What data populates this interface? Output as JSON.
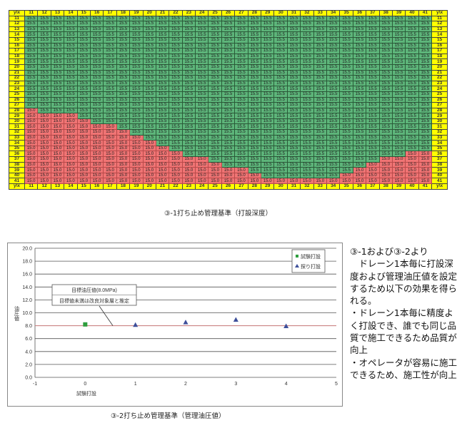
{
  "table": {
    "corner_label": "y\\x",
    "columns": [
      11,
      12,
      13,
      14,
      15,
      16,
      17,
      18,
      19,
      20,
      21,
      22,
      23,
      24,
      25,
      26,
      27,
      28,
      29,
      30,
      31,
      32,
      33,
      34,
      35,
      36,
      37,
      38,
      39,
      40,
      41
    ],
    "rows": [
      {
        "y": 11,
        "values": [
          15.5,
          15.5,
          15.5,
          15.5,
          15.5,
          15.5,
          15.5,
          15.5,
          15.5,
          15.5,
          15.5,
          15.5,
          15.5,
          15.5,
          15.5,
          15.5,
          15.5,
          15.5,
          15.5,
          15.5,
          15.5,
          15.5,
          15.5,
          15.5,
          15.5,
          15.5,
          15.5,
          15.5,
          15.5,
          15.5,
          15.5
        ]
      },
      {
        "y": 12,
        "values": [
          15.5,
          15.5,
          15.5,
          15.5,
          15.5,
          15.5,
          15.5,
          15.5,
          15.5,
          15.5,
          15.5,
          15.5,
          15.5,
          15.5,
          15.5,
          15.5,
          15.5,
          15.5,
          15.5,
          15.5,
          15.5,
          15.5,
          15.5,
          15.5,
          15.5,
          15.5,
          15.5,
          15.5,
          15.5,
          15.5,
          15.5
        ]
      },
      {
        "y": 13,
        "values": [
          15.5,
          15.5,
          15.5,
          15.5,
          15.5,
          15.5,
          15.5,
          15.5,
          15.5,
          15.5,
          15.5,
          15.5,
          15.5,
          15.5,
          15.5,
          15.5,
          15.5,
          15.5,
          15.5,
          15.5,
          15.5,
          15.5,
          15.5,
          15.5,
          15.5,
          15.5,
          15.5,
          15.5,
          15.5,
          15.5,
          15.5
        ]
      },
      {
        "y": 14,
        "values": [
          15.5,
          15.5,
          15.5,
          15.5,
          15.5,
          15.5,
          15.5,
          15.5,
          15.5,
          15.5,
          15.5,
          15.5,
          15.5,
          15.5,
          15.5,
          15.5,
          15.5,
          15.5,
          15.5,
          15.5,
          15.5,
          15.5,
          15.5,
          15.5,
          15.5,
          15.5,
          15.5,
          15.5,
          15.5,
          15.5,
          15.5
        ]
      },
      {
        "y": 15,
        "values": [
          15.5,
          15.5,
          15.5,
          15.5,
          15.5,
          15.5,
          15.5,
          15.5,
          15.5,
          15.5,
          15.5,
          15.5,
          15.5,
          15.5,
          15.5,
          15.5,
          15.5,
          15.5,
          15.5,
          15.5,
          15.5,
          15.5,
          15.5,
          15.5,
          15.5,
          15.5,
          15.5,
          15.5,
          15.5,
          15.5,
          15.5
        ]
      },
      {
        "y": 16,
        "values": [
          15.5,
          15.5,
          15.5,
          15.5,
          15.5,
          15.5,
          15.5,
          15.5,
          15.5,
          15.5,
          15.5,
          15.5,
          15.5,
          15.5,
          15.5,
          15.5,
          15.5,
          15.5,
          15.5,
          15.5,
          15.5,
          15.5,
          15.5,
          15.5,
          15.5,
          15.5,
          15.5,
          15.5,
          15.5,
          15.5,
          15.5
        ]
      },
      {
        "y": 17,
        "values": [
          15.5,
          15.5,
          15.5,
          15.5,
          15.5,
          15.5,
          15.5,
          15.5,
          15.5,
          15.5,
          15.5,
          15.5,
          15.5,
          15.5,
          15.5,
          15.5,
          15.5,
          15.5,
          15.5,
          15.5,
          15.5,
          15.5,
          15.5,
          15.5,
          15.5,
          15.5,
          15.5,
          15.5,
          15.5,
          15.5,
          15.5
        ]
      },
      {
        "y": 18,
        "values": [
          15.5,
          15.5,
          15.5,
          15.5,
          15.5,
          15.5,
          15.5,
          15.5,
          15.5,
          15.5,
          15.5,
          15.5,
          15.5,
          15.5,
          15.5,
          15.5,
          15.5,
          15.5,
          15.5,
          15.5,
          15.5,
          15.5,
          15.5,
          15.5,
          15.5,
          15.5,
          15.5,
          15.5,
          15.5,
          15.5,
          15.5
        ]
      },
      {
        "y": 19,
        "values": [
          15.5,
          15.5,
          15.5,
          15.5,
          15.5,
          15.5,
          15.5,
          15.5,
          15.5,
          15.5,
          15.5,
          15.5,
          15.5,
          15.5,
          15.5,
          15.5,
          15.5,
          15.5,
          15.5,
          15.5,
          15.5,
          15.5,
          15.5,
          15.5,
          15.5,
          15.5,
          15.5,
          15.5,
          15.5,
          15.5,
          15.5
        ]
      },
      {
        "y": 20,
        "values": [
          15.5,
          15.5,
          15.5,
          15.5,
          15.5,
          15.5,
          15.5,
          15.5,
          15.5,
          15.5,
          15.5,
          15.5,
          15.5,
          15.5,
          15.5,
          15.5,
          15.5,
          15.5,
          15.5,
          15.5,
          15.5,
          15.5,
          15.5,
          15.5,
          15.5,
          15.5,
          15.5,
          15.5,
          15.5,
          15.5,
          15.5
        ]
      },
      {
        "y": 21,
        "values": [
          15.5,
          15.5,
          15.5,
          15.5,
          15.5,
          15.5,
          15.5,
          15.5,
          15.5,
          15.5,
          15.5,
          15.5,
          15.5,
          15.5,
          15.5,
          15.5,
          15.5,
          15.5,
          15.5,
          15.5,
          15.5,
          15.5,
          15.5,
          15.5,
          15.5,
          15.5,
          15.5,
          15.5,
          15.5,
          15.5,
          15.5
        ]
      },
      {
        "y": 22,
        "values": [
          15.5,
          15.5,
          15.5,
          15.5,
          15.5,
          15.5,
          15.5,
          15.5,
          15.5,
          15.5,
          15.5,
          15.5,
          15.5,
          15.5,
          15.5,
          15.5,
          15.5,
          15.5,
          15.5,
          15.5,
          15.5,
          15.5,
          15.5,
          15.5,
          15.5,
          15.5,
          15.5,
          15.5,
          15.5,
          15.5,
          15.5
        ]
      },
      {
        "y": 23,
        "values": [
          15.5,
          15.5,
          15.5,
          15.5,
          15.5,
          15.5,
          15.5,
          15.5,
          15.5,
          15.5,
          15.5,
          15.5,
          15.5,
          15.5,
          15.5,
          15.5,
          15.5,
          15.5,
          15.5,
          15.5,
          15.5,
          15.5,
          15.5,
          15.5,
          15.5,
          15.5,
          15.5,
          15.5,
          15.5,
          15.5,
          15.5
        ]
      },
      {
        "y": 24,
        "values": [
          15.5,
          15.5,
          15.5,
          15.5,
          15.5,
          15.5,
          15.5,
          15.5,
          15.5,
          15.5,
          15.5,
          15.5,
          15.5,
          15.5,
          15.5,
          15.5,
          15.5,
          15.5,
          15.5,
          15.5,
          15.5,
          15.5,
          15.5,
          15.5,
          15.5,
          15.5,
          15.5,
          15.5,
          15.5,
          15.5,
          15.5
        ]
      },
      {
        "y": 25,
        "values": [
          15.5,
          15.5,
          15.5,
          15.5,
          15.5,
          15.5,
          15.5,
          15.5,
          15.5,
          15.5,
          15.5,
          15.5,
          15.5,
          15.5,
          15.5,
          15.5,
          15.5,
          15.5,
          15.5,
          15.5,
          15.5,
          15.5,
          15.5,
          15.5,
          15.5,
          15.5,
          15.5,
          15.5,
          15.5,
          15.5,
          15.5
        ]
      },
      {
        "y": 26,
        "values": [
          15.5,
          15.5,
          15.5,
          15.5,
          15.5,
          15.5,
          15.5,
          15.5,
          15.5,
          15.5,
          15.5,
          15.5,
          15.5,
          15.5,
          15.5,
          15.5,
          15.5,
          15.5,
          15.5,
          15.5,
          15.5,
          15.5,
          15.5,
          15.5,
          15.5,
          15.5,
          15.5,
          15.5,
          15.5,
          15.5,
          15.5
        ]
      },
      {
        "y": 27,
        "values": [
          15.5,
          15.5,
          15.5,
          15.5,
          15.5,
          15.5,
          15.5,
          15.5,
          15.5,
          15.5,
          15.5,
          15.5,
          15.5,
          15.5,
          15.5,
          15.5,
          15.5,
          15.5,
          15.5,
          15.5,
          15.5,
          15.5,
          15.5,
          15.5,
          15.5,
          15.5,
          15.5,
          15.5,
          15.5,
          15.5,
          15.5
        ]
      },
      {
        "y": 28,
        "values": [
          15.0,
          15.5,
          15.5,
          15.5,
          15.5,
          15.5,
          15.5,
          15.5,
          15.5,
          15.5,
          15.5,
          15.5,
          15.5,
          15.5,
          15.5,
          15.5,
          15.5,
          15.5,
          15.5,
          15.5,
          15.5,
          15.5,
          15.5,
          15.5,
          15.5,
          15.5,
          15.5,
          15.5,
          15.5,
          15.5,
          15.5
        ]
      },
      {
        "y": 29,
        "values": [
          15.0,
          15.0,
          15.0,
          15.0,
          15.5,
          15.5,
          15.5,
          15.5,
          15.5,
          15.5,
          15.5,
          15.5,
          15.5,
          15.5,
          15.5,
          15.5,
          15.5,
          15.5,
          15.5,
          15.5,
          15.5,
          15.5,
          15.5,
          15.5,
          15.5,
          15.5,
          15.5,
          15.5,
          15.5,
          15.5,
          15.5
        ]
      },
      {
        "y": 30,
        "values": [
          15.0,
          15.0,
          15.0,
          15.0,
          15.0,
          15.5,
          15.5,
          15.5,
          15.5,
          15.5,
          15.5,
          15.5,
          15.5,
          15.5,
          15.5,
          15.5,
          15.5,
          15.5,
          15.5,
          15.5,
          15.5,
          15.5,
          15.5,
          15.5,
          15.5,
          15.5,
          15.5,
          15.5,
          15.5,
          15.5,
          15.5
        ]
      },
      {
        "y": 31,
        "values": [
          15.0,
          15.0,
          15.0,
          15.0,
          15.0,
          15.0,
          15.0,
          15.5,
          15.5,
          15.5,
          15.5,
          15.5,
          15.5,
          15.5,
          15.5,
          15.5,
          15.5,
          15.5,
          15.5,
          15.5,
          15.5,
          15.5,
          15.5,
          15.5,
          15.5,
          15.5,
          15.5,
          15.5,
          15.5,
          15.5,
          15.5
        ]
      },
      {
        "y": 32,
        "values": [
          15.0,
          15.0,
          15.0,
          15.0,
          15.0,
          15.0,
          15.0,
          15.0,
          15.5,
          15.5,
          15.5,
          15.5,
          15.5,
          15.5,
          15.5,
          15.5,
          15.5,
          15.5,
          15.5,
          15.5,
          15.5,
          15.5,
          15.5,
          15.5,
          15.5,
          15.5,
          15.5,
          15.5,
          15.5,
          15.5,
          15.5
        ]
      },
      {
        "y": 33,
        "values": [
          15.0,
          15.0,
          15.0,
          15.0,
          15.0,
          15.0,
          15.0,
          15.0,
          15.0,
          15.5,
          15.5,
          15.5,
          15.5,
          15.5,
          15.5,
          15.5,
          15.5,
          15.5,
          15.5,
          15.5,
          15.5,
          15.5,
          15.5,
          15.5,
          15.5,
          15.5,
          15.5,
          15.5,
          15.5,
          15.5,
          15.5
        ]
      },
      {
        "y": 34,
        "values": [
          15.0,
          15.0,
          15.0,
          15.0,
          15.0,
          15.0,
          15.0,
          15.0,
          15.0,
          15.0,
          15.5,
          15.5,
          15.5,
          15.5,
          15.5,
          15.5,
          15.5,
          15.5,
          15.5,
          15.5,
          15.5,
          15.5,
          15.5,
          15.5,
          15.5,
          15.5,
          15.5,
          15.5,
          15.5,
          15.5,
          15.5
        ]
      },
      {
        "y": 35,
        "values": [
          15.0,
          15.0,
          15.0,
          15.0,
          15.0,
          15.0,
          15.0,
          15.0,
          15.0,
          15.0,
          15.0,
          15.5,
          15.5,
          15.5,
          15.5,
          15.5,
          15.5,
          15.5,
          15.5,
          15.5,
          15.5,
          15.5,
          15.5,
          15.5,
          15.5,
          15.5,
          15.5,
          15.5,
          15.5,
          15.5,
          15.5
        ]
      },
      {
        "y": 36,
        "values": [
          15.0,
          15.0,
          15.0,
          15.0,
          15.0,
          15.0,
          15.0,
          15.0,
          15.0,
          15.0,
          15.0,
          15.0,
          15.5,
          15.5,
          15.5,
          15.5,
          15.5,
          15.5,
          15.5,
          15.5,
          15.5,
          15.5,
          15.5,
          15.5,
          15.5,
          15.5,
          15.5,
          15.5,
          15.5,
          15.0,
          15.0
        ]
      },
      {
        "y": 37,
        "values": [
          15.0,
          15.0,
          15.0,
          15.0,
          15.0,
          15.0,
          15.0,
          15.0,
          15.0,
          15.0,
          15.0,
          15.0,
          15.0,
          15.0,
          15.5,
          15.5,
          15.5,
          15.5,
          15.5,
          15.5,
          15.5,
          15.5,
          15.5,
          15.5,
          15.5,
          15.5,
          15.5,
          15.0,
          15.0,
          15.0,
          15.0
        ]
      },
      {
        "y": 38,
        "values": [
          15.0,
          15.0,
          15.0,
          15.0,
          15.0,
          15.0,
          15.0,
          15.0,
          15.0,
          15.0,
          15.0,
          15.0,
          15.0,
          15.0,
          15.0,
          15.5,
          15.5,
          15.5,
          15.5,
          15.5,
          15.5,
          15.5,
          15.5,
          15.5,
          15.5,
          15.5,
          15.0,
          15.0,
          15.0,
          15.0,
          15.0
        ]
      },
      {
        "y": 39,
        "values": [
          15.0,
          15.0,
          15.0,
          15.0,
          15.0,
          15.0,
          15.0,
          15.0,
          15.0,
          15.0,
          15.0,
          15.0,
          15.0,
          15.0,
          15.0,
          15.0,
          15.0,
          15.5,
          15.5,
          15.5,
          15.5,
          15.5,
          15.5,
          15.5,
          15.5,
          15.0,
          15.0,
          15.0,
          15.0,
          15.0,
          15.0
        ]
      },
      {
        "y": 40,
        "values": [
          15.0,
          15.0,
          15.0,
          15.0,
          15.0,
          15.0,
          15.0,
          15.0,
          15.0,
          15.0,
          15.0,
          15.0,
          15.0,
          15.0,
          15.0,
          15.0,
          15.0,
          15.0,
          15.5,
          15.5,
          15.5,
          15.5,
          15.5,
          15.5,
          15.0,
          15.0,
          15.0,
          15.0,
          15.0,
          15.0,
          15.0
        ]
      },
      {
        "y": 41,
        "values": [
          15.0,
          15.0,
          15.0,
          15.0,
          15.0,
          15.0,
          15.0,
          15.0,
          15.0,
          15.0,
          15.0,
          15.0,
          15.0,
          15.0,
          15.0,
          15.0,
          15.0,
          15.0,
          15.0,
          15.0,
          15.0,
          15.0,
          15.0,
          15.0,
          15.0,
          15.0,
          15.0,
          15.0,
          15.0,
          15.0,
          15.0
        ]
      }
    ],
    "colors": {
      "deep": "#5db57a",
      "shallow": "#f07474",
      "header": "#ffff00"
    },
    "caption": "③-1打ち止め管理基準（打設深度）"
  },
  "chart_data": {
    "type": "scatter",
    "xlim": [
      -1,
      5
    ],
    "ylim": [
      0,
      20
    ],
    "xticks": [
      -1,
      0,
      1,
      2,
      3,
      4,
      5
    ],
    "yticks": [
      "0.0",
      "2.0",
      "4.0",
      "6.0",
      "8.0",
      "10.0",
      "12.0",
      "14.0",
      "16.0",
      "18.0",
      "20.0"
    ],
    "ylabel": "油圧値",
    "xlabel": "試験打設",
    "grid": true,
    "legend_placement": "top-right",
    "series": [
      {
        "name": "試験打設",
        "marker": "square",
        "color": "#2e9e3e",
        "points": [
          {
            "x": 0,
            "y": 8.2
          }
        ]
      },
      {
        "name": "探り打設",
        "marker": "triangle",
        "color": "#3d4f9a",
        "points": [
          {
            "x": 1,
            "y": 8.1
          },
          {
            "x": 2,
            "y": 8.5
          },
          {
            "x": 3,
            "y": 8.9
          },
          {
            "x": 4,
            "y": 7.9
          }
        ]
      }
    ],
    "reference_line": {
      "y": 8.0,
      "color": "#d08080"
    },
    "annotation": {
      "line1": "目標油圧値(8.0MPa)",
      "line2": "目標値未満は改良対象層と推定",
      "x": 0.55,
      "y": 8.0
    },
    "caption": "③-2打ち止め管理基準（管理油圧値）"
  },
  "side_text": "③-1および③-2より\n　ドレーン1本毎に打設深度および管理油圧値を設定するため以下の効果を得られる。\n・ドレーン1本毎に精度よく打設でき、誰でも同じ品質で施工できるため品質が向上\n・オペレータが容易に施工できるため、施工性が向上"
}
